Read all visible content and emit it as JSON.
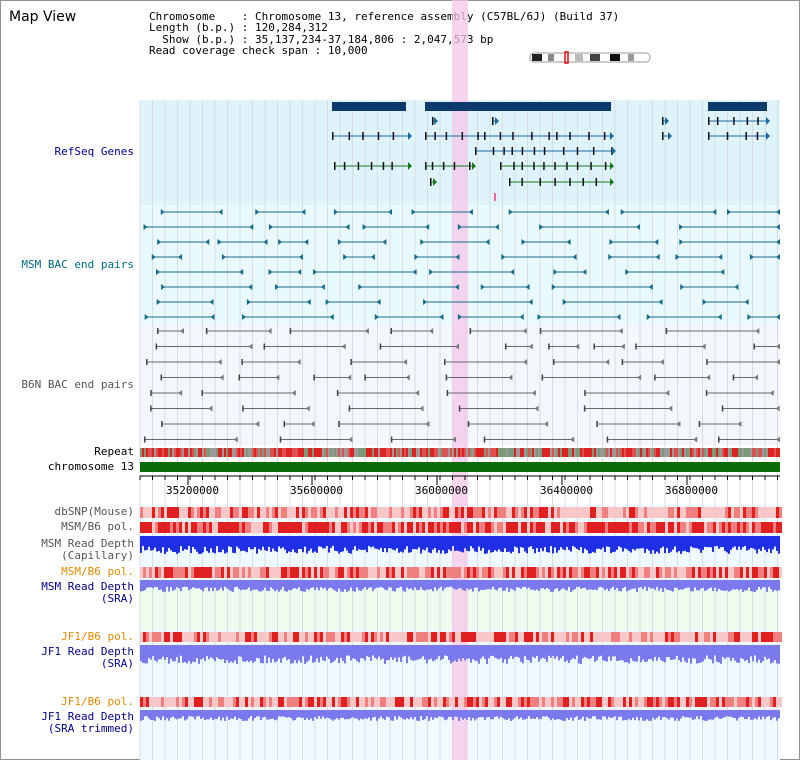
{
  "page_title": "Map View",
  "info": {
    "chromosome_key": "Chromosome",
    "chromosome_val": "Chromosome 13, reference assembly (C57BL/6J) (Build 37)",
    "length_key": "Length (b.p.)",
    "length_val": "120,284,312",
    "show_key": "Show (b.p.)",
    "show_val": "35,137,234-37,184,806 : 2,047,573 bp",
    "coverage_key": "Read coverage check span",
    "coverage_val": "10,000"
  },
  "tracks": {
    "refseq": "RefSeq Genes",
    "msm_bac": "MSM BAC end pairs",
    "b6n_bac": "B6N BAC end pairs",
    "repeat": "Repeat",
    "chromosome": "chromosome 13",
    "dbsnp": "dbSNP(Mouse)",
    "msm_b6_pol_1": "MSM/B6 pol.",
    "msm_read_depth_cap_1": "MSM Read Depth",
    "msm_read_depth_cap_2": "(Capillary)",
    "msm_b6_pol_2": "MSM/B6 pol.",
    "msm_read_depth_sra_1": "MSM Read Depth",
    "msm_read_depth_sra_2": "(SRA)",
    "jf1_b6_pol_1": "JF1/B6 pol.",
    "jf1_read_depth_sra_1": "JF1 Read Depth",
    "jf1_read_depth_sra_2": "(SRA)",
    "jf1_b6_pol_2": "JF1/B6 pol.",
    "jf1_read_depth_trim_1": "JF1 Read Depth",
    "jf1_read_depth_trim_2": "(SRA trimmed)"
  },
  "axis_ticks": [
    "35200000",
    "35600000",
    "36000000",
    "36400000",
    "36800000"
  ],
  "colors": {
    "refseq_bg": "#dff3fb",
    "msm_bg": "#e8fafb",
    "b6n_bg": "#f4f7fb",
    "highlight": "#f5c7ea",
    "chromosome_bar": "#0a6b0a",
    "navy_label": "#00008b",
    "teal_label": "#006b80",
    "gray_label": "#555555",
    "orange_label": "#e08a00",
    "depth_blue": "#1f2fe6",
    "depth_light": "#7a7aee",
    "pol_red": "#f04040"
  }
}
